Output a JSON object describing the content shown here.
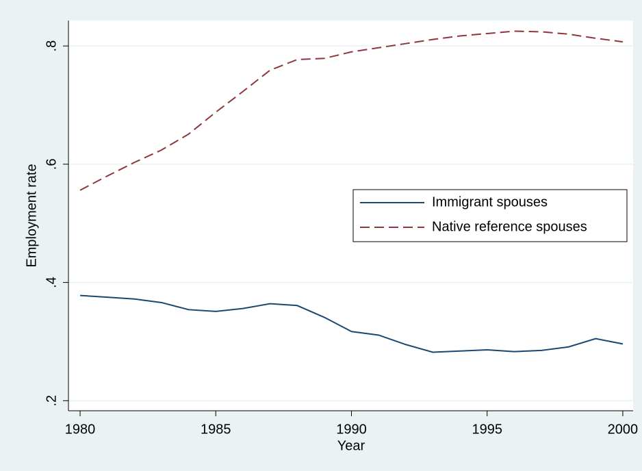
{
  "chart_data": {
    "type": "line",
    "x": [
      1980,
      1981,
      1982,
      1983,
      1984,
      1985,
      1986,
      1987,
      1988,
      1989,
      1990,
      1991,
      1992,
      1993,
      1994,
      1995,
      1996,
      1997,
      1998,
      1999,
      2000
    ],
    "series": [
      {
        "name": "Immigrant spouses",
        "color": "#1a476f",
        "dash": "solid",
        "values": [
          0.378,
          0.375,
          0.372,
          0.366,
          0.354,
          0.351,
          0.356,
          0.364,
          0.361,
          0.341,
          0.317,
          0.311,
          0.295,
          0.282,
          0.284,
          0.286,
          0.283,
          0.285,
          0.291,
          0.305,
          0.296
        ]
      },
      {
        "name": "Native reference spouses",
        "color": "#90353b",
        "dash": "dashed",
        "values": [
          0.556,
          0.58,
          0.603,
          0.624,
          0.651,
          0.688,
          0.723,
          0.759,
          0.777,
          0.779,
          0.79,
          0.797,
          0.804,
          0.811,
          0.817,
          0.821,
          0.825,
          0.824,
          0.82,
          0.813,
          0.807
        ]
      }
    ],
    "xlabel": "Year",
    "ylabel": "Employment rate",
    "xlim": [
      1979.57,
      2000.38
    ],
    "xticks": [
      1980,
      1985,
      1990,
      1995,
      2000
    ],
    "ylim": [
      0.183,
      0.843
    ],
    "yticks": [
      {
        "value": 0.2,
        "label": ".2"
      },
      {
        "value": 0.4,
        "label": ".4"
      },
      {
        "value": 0.6,
        "label": ".6"
      },
      {
        "value": 0.8,
        "label": ".8"
      }
    ],
    "grid": true,
    "legend": "center-right"
  }
}
